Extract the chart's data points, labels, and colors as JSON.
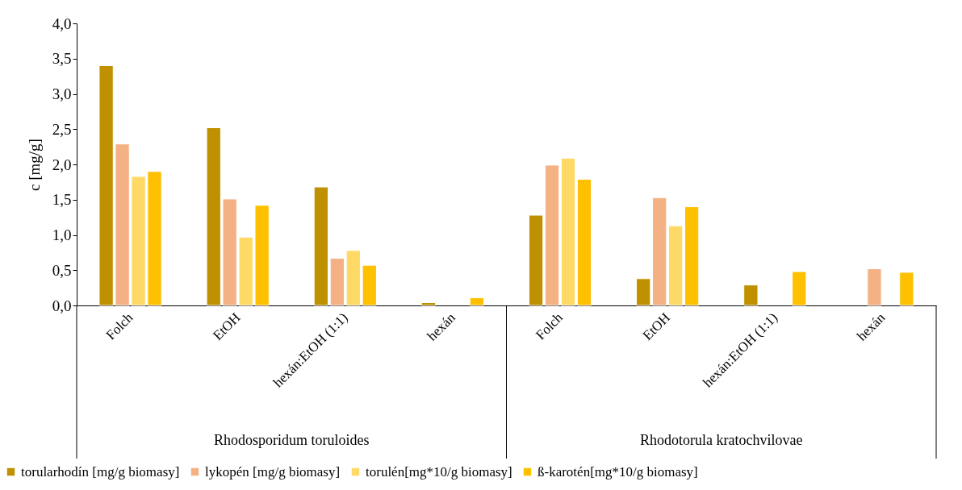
{
  "chart_data": {
    "type": "bar",
    "ylabel": "c [mg/g]",
    "categories": [
      "Folch",
      "EtOH",
      "hexán:EtOH (1:1)",
      "hexán",
      "Folch",
      "EtOH",
      "hexán:EtOH (1:1)",
      "hexán"
    ],
    "annotations": [
      "Rhodosporidum toruloides",
      "Rhodotorula kratochvilovae"
    ],
    "series": [
      {
        "name": "torularhodín [mg/g biomasy]",
        "color": "#bf9000",
        "values": [
          3.4,
          2.52,
          1.68,
          0.04,
          1.28,
          0.38,
          0.29,
          null
        ]
      },
      {
        "name": "lykopén [mg/g biomasy]",
        "color": "#f4b183",
        "values": [
          2.29,
          1.51,
          0.67,
          null,
          1.99,
          1.53,
          null,
          0.52
        ]
      },
      {
        "name": "torulén[mg*10/g biomasy]",
        "color": "#ffd966",
        "values": [
          1.83,
          0.97,
          0.78,
          null,
          2.09,
          1.13,
          null,
          null
        ]
      },
      {
        "name": "ß-karotén[mg*10/g biomasy]",
        "color": "#ffc000",
        "values": [
          1.9,
          1.42,
          0.57,
          0.11,
          1.79,
          1.4,
          0.48,
          0.47
        ]
      }
    ],
    "ylim": [
      0,
      4
    ],
    "yticks": [
      {
        "value": 0,
        "label": "0,0"
      },
      {
        "value": 0.5,
        "label": "0,5"
      },
      {
        "value": 1,
        "label": "1,0"
      },
      {
        "value": 1.5,
        "label": "1,5"
      },
      {
        "value": 2,
        "label": "2,0"
      },
      {
        "value": 2.5,
        "label": "2,5"
      },
      {
        "value": 3,
        "label": "3,0"
      },
      {
        "value": 3.5,
        "label": "3,5"
      },
      {
        "value": 4,
        "label": "4,0"
      }
    ],
    "grid": false,
    "legend": "bottom"
  }
}
